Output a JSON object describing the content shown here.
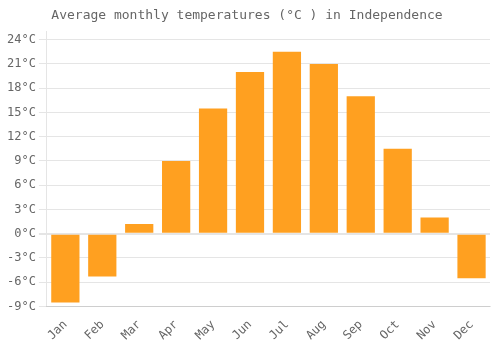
{
  "chart_data": {
    "type": "bar",
    "title": "Average monthly temperatures (°C ) in Independence",
    "categories": [
      "Jan",
      "Feb",
      "Mar",
      "Apr",
      "May",
      "Jun",
      "Jul",
      "Aug",
      "Sep",
      "Oct",
      "Nov",
      "Dec"
    ],
    "values": [
      -8.5,
      -5.3,
      1.2,
      9.0,
      15.5,
      20.0,
      22.5,
      21.0,
      17.0,
      10.5,
      2.0,
      -5.5
    ],
    "color": "#FFA020",
    "ylim": [
      -9,
      25
    ],
    "yticks": [
      {
        "value": -9,
        "label": "-9°C"
      },
      {
        "value": -6,
        "label": "-6°C"
      },
      {
        "value": -3,
        "label": "-3°C"
      },
      {
        "value": 0,
        "label": "0°C"
      },
      {
        "value": 3,
        "label": "3°C"
      },
      {
        "value": 6,
        "label": "6°C"
      },
      {
        "value": 9,
        "label": "9°C"
      },
      {
        "value": 12,
        "label": "12°C"
      },
      {
        "value": 15,
        "label": "15°C"
      },
      {
        "value": 18,
        "label": "18°C"
      },
      {
        "value": 21,
        "label": "21°C"
      },
      {
        "value": 24,
        "label": "24°C"
      }
    ],
    "grid": true
  }
}
